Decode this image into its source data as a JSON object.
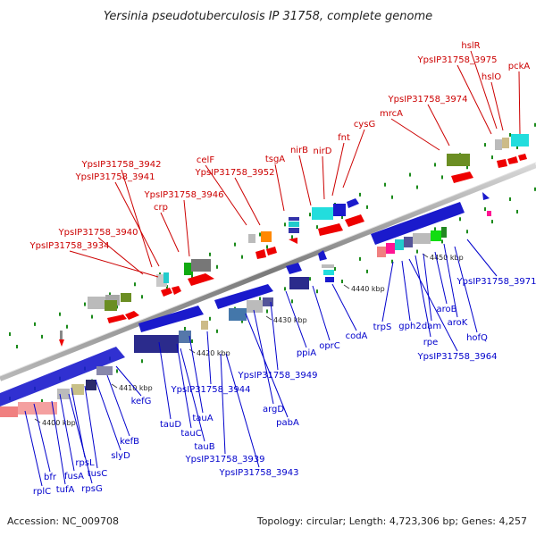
{
  "title": "Yersinia pseudotuberculosis IP 31758, complete genome",
  "footer": {
    "accession": "Accession: NC_009708",
    "summary": "Topology: circular; Length: 4,723,306 bp; Genes: 4,257"
  },
  "scale_labels": [
    "4400 kbp",
    "4410 kbp",
    "4420 kbp",
    "4430 kbp",
    "4440 kbp",
    "4450 kbp"
  ],
  "top_labels": [
    "hslR",
    "YpsIP31758_3975",
    "hslO",
    "pckA",
    "YpsIP31758_3974",
    "mrcA",
    "cysG",
    "fnt",
    "nirD",
    "nirB",
    "tsgA",
    "celF",
    "YpsIP31758_3952",
    "YpsIP31758_3942",
    "YpsIP31758_3941",
    "YpsIP31758_3946",
    "crp",
    "YpsIP31758_3940",
    "YpsIP31758_3934"
  ],
  "bottom_labels": [
    "YpsIP31758_3971",
    "hofQ",
    "aroK",
    "aroB",
    "dam",
    "rpe",
    "YpsIP31758_3964",
    "gph2",
    "trpS",
    "codA",
    "oprC",
    "ppiA",
    "YpsIP31758_3949",
    "argD",
    "pabA",
    "YpsIP31758_3944",
    "tauA",
    "tauD",
    "tauC",
    "tauB",
    "YpsIP31758_3939",
    "YpsIP31758_3943",
    "kefG",
    "kefB",
    "slyD",
    "tusC",
    "rpsL",
    "fusA",
    "rpsG",
    "tufA",
    "bfr",
    "rplC"
  ],
  "colors": {
    "top_label": "#cc0000",
    "bottom_label": "#0000cc",
    "backbone": "#8a8a8a",
    "tick": "#1a8a1a"
  }
}
